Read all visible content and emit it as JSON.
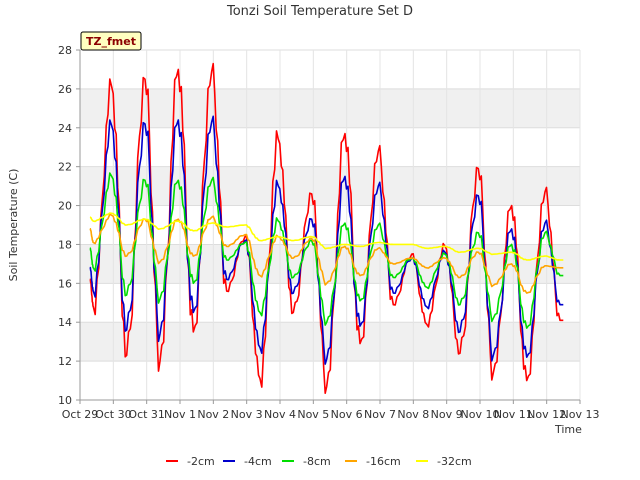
{
  "chart_data": {
    "type": "line",
    "title": "Tonzi Soil Temperature Set D",
    "xlabel": "Time",
    "ylabel": "Soil Temperature (C)",
    "annotation": "TZ_fmet",
    "ylim": [
      10,
      28
    ],
    "yticks": [
      10,
      12,
      14,
      16,
      18,
      20,
      22,
      24,
      26,
      28
    ],
    "xlim": [
      0,
      15
    ],
    "xticks": [
      0,
      1,
      2,
      3,
      4,
      5,
      6,
      7,
      8,
      9,
      10,
      11,
      12,
      13,
      14,
      15
    ],
    "xtick_labels": [
      "Oct 29",
      "Oct 30",
      "Oct 31",
      "Nov 1",
      "Nov 2",
      "Nov 3",
      "Nov 4",
      "Nov 5",
      "Nov 6",
      "Nov 7",
      "Nov 8",
      "Nov 9",
      "Nov 10",
      "Nov 11",
      "Nov 12",
      "Nov 13"
    ],
    "grid": "horizontal bands",
    "legend_position": "bottom",
    "days": [
      0.5,
      1.5,
      2.5,
      3.5,
      4.5,
      5.5,
      6.5,
      7.5,
      8.5,
      9.5,
      10.5,
      11.5,
      12.5,
      13.5,
      14.5
    ],
    "series": [
      {
        "name": "-2cm",
        "color": "#ff0000",
        "start": 16.2,
        "end": 14.1,
        "mins": [
          14.8,
          12.3,
          12.0,
          13.5,
          15.6,
          11.1,
          14.5,
          10.7,
          12.9,
          14.9,
          13.9,
          12.4,
          11.4,
          11.0,
          14.1
        ],
        "maxs": [
          26.1,
          26.5,
          27.0,
          26.9,
          18.4,
          23.4,
          20.6,
          23.7,
          22.8,
          17.5,
          17.9,
          21.9,
          20.0,
          20.7
        ]
      },
      {
        "name": "-4cm",
        "color": "#0000cc",
        "start": 16.8,
        "end": 14.9,
        "mins": [
          15.6,
          13.6,
          13.4,
          14.5,
          16.2,
          12.7,
          15.5,
          12.1,
          13.8,
          15.5,
          14.8,
          13.5,
          12.3,
          12.2,
          14.9
        ],
        "maxs": [
          24.1,
          24.2,
          24.4,
          24.3,
          18.2,
          21.0,
          19.3,
          21.5,
          21.0,
          17.3,
          17.6,
          20.5,
          18.8,
          19.1
        ]
      },
      {
        "name": "-8cm",
        "color": "#00dd00",
        "start": 17.8,
        "end": 16.4,
        "mins": [
          16.8,
          15.4,
          15.2,
          16.0,
          17.2,
          14.5,
          16.3,
          14.0,
          15.1,
          16.3,
          15.8,
          14.9,
          14.2,
          13.7,
          16.4
        ],
        "maxs": [
          21.5,
          21.3,
          21.3,
          21.3,
          18.1,
          19.2,
          18.2,
          19.1,
          19.0,
          17.3,
          17.5,
          18.6,
          18.0,
          18.6
        ]
      },
      {
        "name": "-16cm",
        "color": "#ffa500",
        "start": 18.8,
        "end": 16.8,
        "mins": [
          18.1,
          17.4,
          17.1,
          17.4,
          17.9,
          16.4,
          17.3,
          16.0,
          16.4,
          17.0,
          16.8,
          16.3,
          15.9,
          15.5,
          16.8
        ],
        "maxs": [
          19.5,
          19.3,
          19.3,
          19.4,
          18.5,
          18.4,
          18.3,
          17.9,
          17.8,
          17.3,
          17.3,
          17.6,
          17.0,
          16.9
        ]
      },
      {
        "name": "-32cm",
        "color": "#ffff00",
        "start": 19.4,
        "end": 17.2,
        "mins": [
          19.2,
          19.0,
          18.8,
          18.7,
          18.9,
          18.2,
          18.2,
          17.8,
          17.9,
          18.0,
          17.8,
          17.6,
          17.5,
          17.2,
          17.2
        ],
        "maxs": [
          19.6,
          19.3,
          19.2,
          19.1,
          19.0,
          18.4,
          18.4,
          18.0,
          18.1,
          18.0,
          17.9,
          17.8,
          17.6,
          17.4
        ]
      }
    ]
  }
}
